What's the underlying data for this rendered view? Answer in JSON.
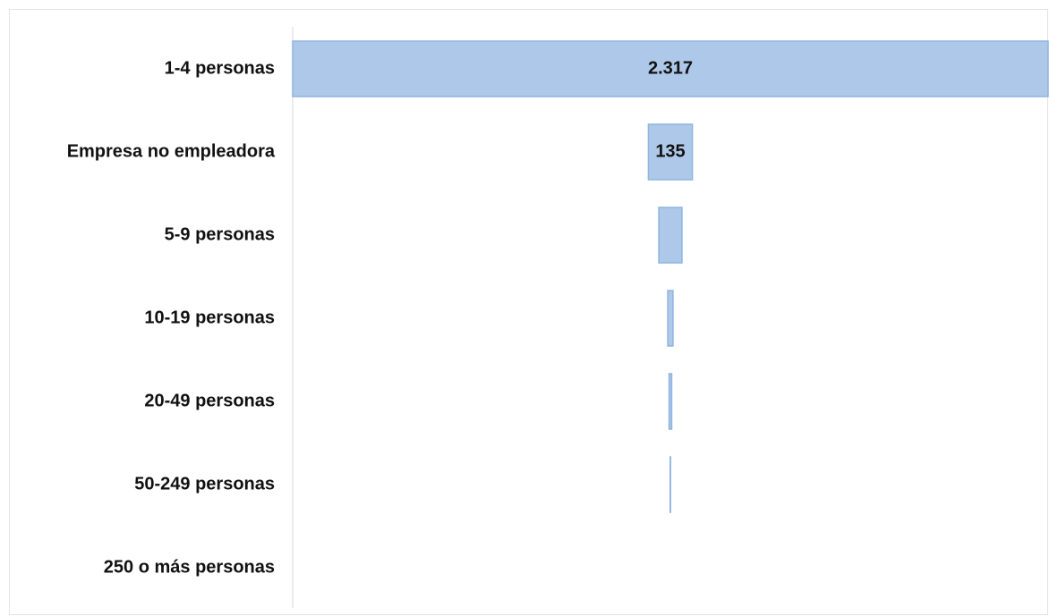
{
  "chart_data": {
    "type": "funnel",
    "categories": [
      "1-4 personas",
      "Empresa no empleadora",
      "5-9 personas",
      "10-19 personas",
      "20-49 personas",
      "50-249 personas",
      "250 o más personas"
    ],
    "values": [
      2317,
      135,
      71,
      16,
      8,
      1,
      0
    ],
    "value_labels": [
      "2.317",
      "135",
      null,
      null,
      null,
      null,
      null
    ],
    "color": "#adc8e8",
    "edge_color": "#8fb4e0"
  }
}
